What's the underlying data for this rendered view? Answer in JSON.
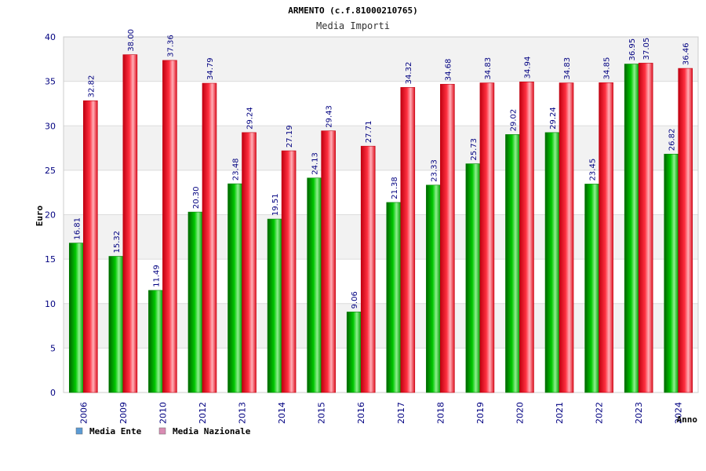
{
  "chart_data": {
    "type": "bar",
    "title": "ARMENTO (c.f.81000210765)",
    "subtitle": "Media Importi",
    "xlabel": "Anno",
    "ylabel": "Euro",
    "ylim": [
      0,
      40
    ],
    "yticks": [
      "0",
      "5",
      "10",
      "15",
      "20",
      "25",
      "30",
      "35",
      "40"
    ],
    "grid": true,
    "legend_position": "bottom-left",
    "categories": [
      "2006",
      "2009",
      "2010",
      "2012",
      "2013",
      "2014",
      "2015",
      "2016",
      "2017",
      "2018",
      "2019",
      "2020",
      "2021",
      "2022",
      "2023",
      "2024"
    ],
    "series": [
      {
        "name": "Media Ente",
        "color": "#00b400",
        "legend_color": "#5b9bd5",
        "values": [
          16.81,
          15.32,
          11.49,
          20.3,
          23.48,
          19.51,
          24.13,
          9.06,
          21.38,
          23.33,
          25.73,
          29.02,
          29.24,
          23.45,
          36.95,
          26.82
        ],
        "labels": [
          "16.81",
          "15.32",
          "11.49",
          "20.30",
          "23.48",
          "19.51",
          "24.13",
          "9.06",
          "21.38",
          "23.33",
          "25.73",
          "29.02",
          "29.24",
          "23.45",
          "36.95",
          "26.82"
        ]
      },
      {
        "name": "Media Nazionale",
        "color": "#e8101e",
        "legend_color": "#d98cb3",
        "values": [
          32.82,
          38.0,
          37.36,
          34.79,
          29.24,
          27.19,
          29.43,
          27.71,
          34.32,
          34.68,
          34.83,
          34.94,
          34.83,
          34.85,
          37.05,
          36.46
        ],
        "labels": [
          "32.82",
          "38.00",
          "37.36",
          "34.79",
          "29.24",
          "27.19",
          "29.43",
          "27.71",
          "34.32",
          "34.68",
          "34.83",
          "34.94",
          "34.83",
          "34.85",
          "37.05",
          "36.46"
        ]
      }
    ]
  }
}
